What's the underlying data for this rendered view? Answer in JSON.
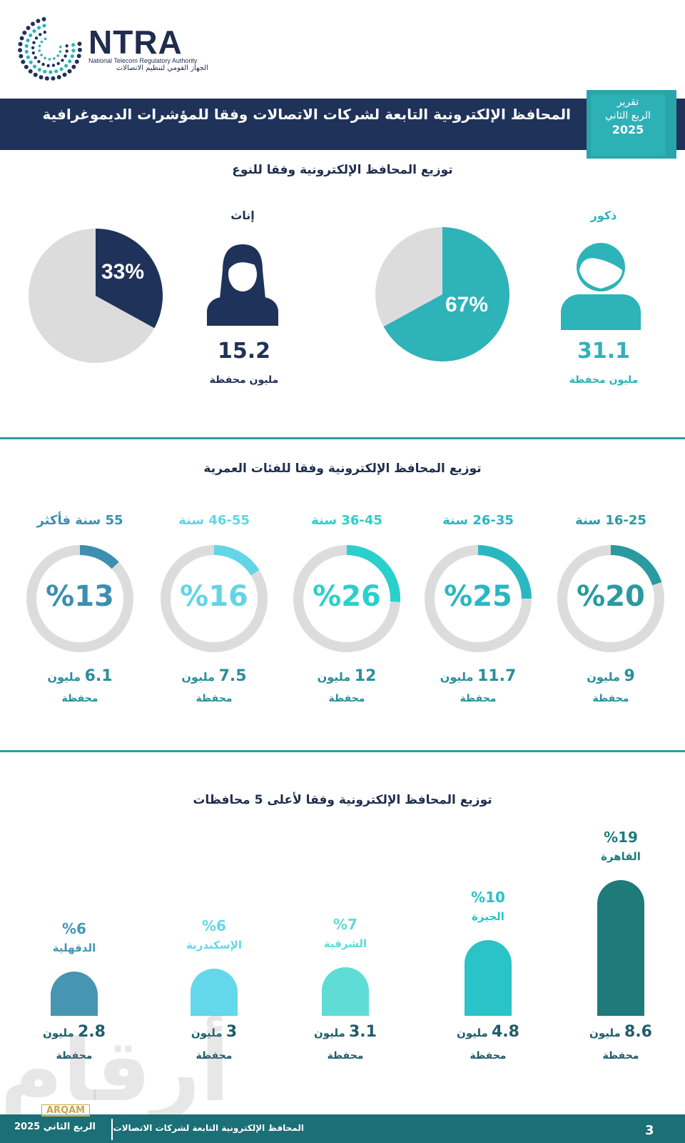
{
  "header": {
    "logo_name": "NTRA",
    "logo_en": "National Telecom Regulatory Authority",
    "logo_ar": "الجهاز القومي لتنظيم الاتصالات",
    "title": "المحافظ الإلكترونية التابعة لشركات الاتصالات وفقا للمؤشرات الديموغرافية",
    "badge_line1": "تقرير",
    "badge_line2": "الربع الثاني",
    "badge_year": "2025"
  },
  "colors": {
    "navy": "#1f3259",
    "teal": "#2eb3b8",
    "grey": "#dcdcdc",
    "dark_teal": "#1b6f76"
  },
  "chart_data": [
    {
      "type": "pie",
      "title": "توزيع المحافظ الإلكترونية وفقا للنوع",
      "groups": [
        {
          "label": "ذكور",
          "percent": 67,
          "percent_label": "67%",
          "value": 31.1,
          "value_label": "31.1",
          "unit": "مليون محفظة",
          "color": "#2eb3b8",
          "icon": "male-user-icon"
        },
        {
          "label": "إناث",
          "percent": 33,
          "percent_label": "33%",
          "value": 15.2,
          "value_label": "15.2",
          "unit": "مليون محفظة",
          "color": "#1f3259",
          "icon": "female-user-icon"
        }
      ]
    },
    {
      "type": "pie",
      "title": "توزيع المحافظ الإلكترونية وفقا للفئات العمرية",
      "groups": [
        {
          "label": "16-25 سنة",
          "percent": 20,
          "percent_label": "%20",
          "value": 9,
          "value_label": "9",
          "unit_inline": "مليون",
          "unit": "محفظة",
          "color": "#2a9aa0"
        },
        {
          "label": "26-35 سنة",
          "percent": 25,
          "percent_label": "%25",
          "value": 11.7,
          "value_label": "11.7",
          "unit_inline": "مليون",
          "unit": "محفظة",
          "color": "#2bb7c2"
        },
        {
          "label": "36-45 سنة",
          "percent": 26,
          "percent_label": "%26",
          "value": 12,
          "value_label": "12",
          "unit_inline": "مليون",
          "unit": "محفظة",
          "color": "#2ad0cc"
        },
        {
          "label": "46-55 سنة",
          "percent": 16,
          "percent_label": "%16",
          "value": 7.5,
          "value_label": "7.5",
          "unit_inline": "مليون",
          "unit": "محفظة",
          "color": "#62d5e6"
        },
        {
          "label": "55 سنة فأكثر",
          "percent": 13,
          "percent_label": "%13",
          "value": 6.1,
          "value_label": "6.1",
          "unit_inline": "مليون",
          "unit": "محفظة",
          "color": "#3c8fb0"
        }
      ]
    },
    {
      "type": "bar",
      "title": "توزيع المحافظ الإلكترونية وفقا لأعلى 5 محافظات",
      "groups": [
        {
          "label": "القاهرة",
          "percent": 19,
          "percent_label": "%19",
          "value": 8.6,
          "value_label": "8.6",
          "unit_inline": "مليون",
          "unit": "محفظة",
          "color": "#1e7b7a"
        },
        {
          "label": "الجيزة",
          "percent": 10,
          "percent_label": "%10",
          "value": 4.8,
          "value_label": "4.8",
          "unit_inline": "مليون",
          "unit": "محفظة",
          "color": "#29c3c8"
        },
        {
          "label": "الشرقية",
          "percent": 7,
          "percent_label": "%7",
          "value": 3.1,
          "value_label": "3.1",
          "unit_inline": "مليون",
          "unit": "محفظة",
          "color": "#5fdcd6"
        },
        {
          "label": "الإسكندرية",
          "percent": 6,
          "percent_label": "%6",
          "value": 3,
          "value_label": "3",
          "unit_inline": "مليون",
          "unit": "محفظة",
          "color": "#62d8ea"
        },
        {
          "label": "الدقهلية",
          "percent": 6,
          "percent_label": "%6",
          "value": 2.8,
          "value_label": "2.8",
          "unit_inline": "مليون",
          "unit": "محفظة",
          "color": "#4696b2"
        }
      ]
    }
  ],
  "footer": {
    "left": "الربع الثاني 2025",
    "right": "المحافظ الإلكترونية التابعة لشركات الاتصالات",
    "page": "3",
    "watermark": "أرقام",
    "watermark_tag": "ARQAM"
  }
}
